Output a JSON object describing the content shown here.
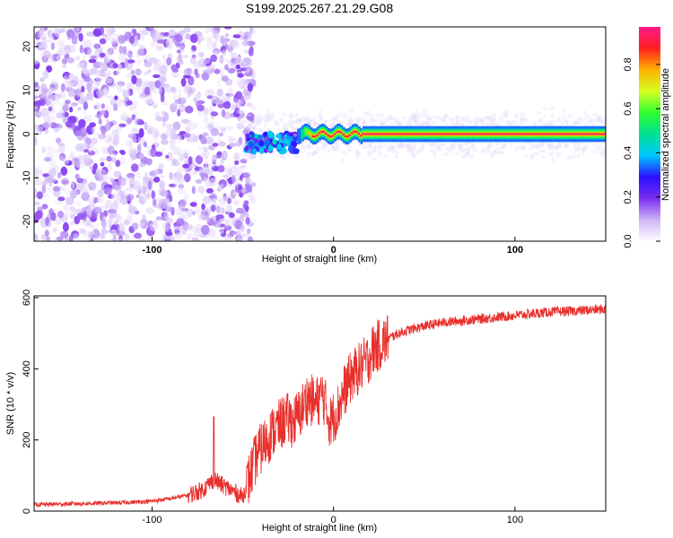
{
  "title": "S199.2025.267.21.29.G08",
  "colors": {
    "line": "#e8302c",
    "spec_dim": "#c9a8f0",
    "spec_dark": "#5a12e0"
  },
  "chart_data": [
    {
      "type": "heatmap",
      "xlabel": "Height of straight line (km)",
      "ylabel": "Frequency (Hz)",
      "xlim": [
        -165,
        150
      ],
      "ylim": [
        -24.5,
        24.5
      ],
      "xticks": [
        {
          "v": -100,
          "label": "-100"
        },
        {
          "v": 0,
          "label": "0"
        },
        {
          "v": 100,
          "label": "100"
        }
      ],
      "yticks": [
        {
          "v": 20,
          "label": "20"
        },
        {
          "v": 10,
          "label": "10"
        },
        {
          "v": 0,
          "label": "0"
        },
        {
          "v": -10,
          "label": "-10"
        },
        {
          "v": -20,
          "label": "-20"
        }
      ],
      "description_ridge": {
        "noise_x_range": [
          -165,
          -48
        ],
        "transition_x_range": [
          -48,
          -20
        ],
        "ridge_x_range": [
          -20,
          150
        ],
        "ridge_frequency_hz": 0,
        "ridge_peak_amplitude": 0.95
      },
      "colorbar": {
        "label": "Normalized spectral amplitude",
        "range": [
          0,
          0.97
        ],
        "ticks": [
          {
            "v": 0.0,
            "label": "0.0"
          },
          {
            "v": 0.2,
            "label": "0.2"
          },
          {
            "v": 0.4,
            "label": "0.4"
          },
          {
            "v": 0.6,
            "label": "0.6"
          },
          {
            "v": 0.8,
            "label": "0.8"
          }
        ],
        "stops": [
          "#ffffff",
          "#cdb4f5",
          "#7a2cf0",
          "#2a10ff",
          "#00c8ff",
          "#00e090",
          "#30ff30",
          "#d8ff20",
          "#ffb000",
          "#ff2020",
          "#ff1890"
        ]
      }
    },
    {
      "type": "line",
      "xlabel": "Height of straight line (km)",
      "ylabel": "SNR (10 * v/v)",
      "xlim": [
        -165,
        150
      ],
      "ylim": [
        0,
        605
      ],
      "xticks": [
        {
          "v": -100,
          "label": "-100"
        },
        {
          "v": 0,
          "label": "0"
        },
        {
          "v": 100,
          "label": "100"
        }
      ],
      "yticks": [
        {
          "v": 0,
          "label": "0"
        },
        {
          "v": 200,
          "label": "200"
        },
        {
          "v": 400,
          "label": "400"
        },
        {
          "v": 600,
          "label": "600"
        }
      ],
      "series": [
        {
          "x": [
            -165,
            -150,
            -130,
            -110,
            -100,
            -90,
            -80,
            -72,
            -66,
            -62,
            -55,
            -50,
            -46,
            -42,
            -38,
            -34,
            -30,
            -26,
            -22,
            -18,
            -14,
            -10,
            -6,
            -2,
            2,
            6,
            10,
            14,
            18,
            22,
            26,
            30,
            36,
            42,
            50,
            60,
            70,
            80,
            90,
            100,
            110,
            120,
            130,
            140,
            150
          ],
          "y": [
            18,
            20,
            22,
            25,
            28,
            35,
            45,
            60,
            90,
            75,
            55,
            40,
            100,
            160,
            190,
            220,
            240,
            260,
            250,
            280,
            320,
            300,
            330,
            250,
            280,
            340,
            380,
            400,
            420,
            455,
            470,
            485,
            500,
            510,
            520,
            530,
            535,
            540,
            545,
            550,
            555,
            560,
            562,
            565,
            568
          ]
        }
      ]
    }
  ]
}
